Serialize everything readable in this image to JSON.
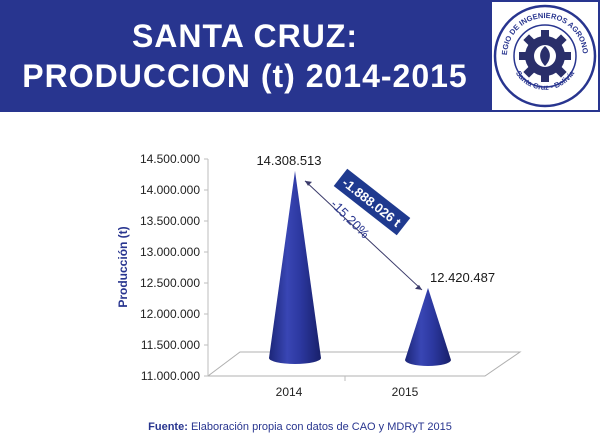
{
  "header": {
    "title_line1": "SANTA CRUZ:",
    "title_line2": "PRODUCCION (t) 2014-2015",
    "logo_text_top": "COLEGIO DE INGENIEROS AGRONOMOS",
    "logo_text_bottom": "Santa Cruz - Bolivia"
  },
  "colors": {
    "header_bg": "#28358f",
    "cone": "#2c38a0",
    "callout": "#1f3a8f"
  },
  "chart_data": {
    "type": "bar",
    "categories": [
      "2014",
      "2015"
    ],
    "values": [
      14308513,
      12420487
    ],
    "value_labels": [
      "14.308.513",
      "12.420.487"
    ],
    "xlabel": "",
    "ylabel": "Producción (t)",
    "ylim": [
      11000000,
      14500000
    ],
    "yticks": [
      11000000,
      11500000,
      12000000,
      12500000,
      13000000,
      13500000,
      14000000,
      14500000
    ],
    "ytick_labels": [
      "11.000.000",
      "11.500.000",
      "12.000.000",
      "12.500.000",
      "13.000.000",
      "13.500.000",
      "14.000.000",
      "14.500.000"
    ],
    "annotations": {
      "difference": "-1.888.026 t",
      "percent": "-15,20%"
    }
  },
  "source": {
    "label": "Fuente:",
    "text": " Elaboración propia con datos de CAO y MDRyT 2015"
  }
}
